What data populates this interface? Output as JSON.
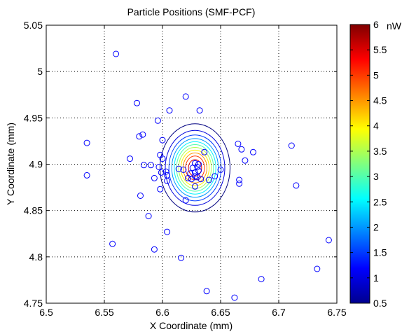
{
  "chart_data": {
    "type": "scatter",
    "title": "Particle Positions (SMF-PCF)",
    "xlabel": "X Coordinate (mm)",
    "ylabel": "Y Coordinate (mm)",
    "xlim": [
      6.5,
      6.75
    ],
    "ylim": [
      4.75,
      5.05
    ],
    "xticks": [
      "6.5",
      "6.55",
      "6.6",
      "6.65",
      "6.7",
      "6.75"
    ],
    "yticks": [
      "4.75",
      "4.8",
      "4.85",
      "4.9",
      "4.95",
      "5",
      "5.05"
    ],
    "grid": true,
    "colorbar": {
      "unit": "nW",
      "range": [
        0.5,
        6
      ],
      "ticks": [
        "0.5",
        "1",
        "1.5",
        "2",
        "2.5",
        "3",
        "3.5",
        "4",
        "4.5",
        "5",
        "5.5",
        "6"
      ]
    },
    "contour": {
      "center": [
        6.628,
        4.896
      ],
      "levels": [
        0.5,
        1,
        1.5,
        2,
        2.5,
        3,
        3.5,
        4,
        4.5,
        5,
        5.5,
        6
      ]
    },
    "points": [
      [
        6.56,
        5.019
      ],
      [
        6.62,
        4.973
      ],
      [
        6.578,
        4.966
      ],
      [
        6.606,
        4.958
      ],
      [
        6.632,
        4.958
      ],
      [
        6.596,
        4.947
      ],
      [
        6.535,
        4.923
      ],
      [
        6.58,
        4.93
      ],
      [
        6.583,
        4.932
      ],
      [
        6.6,
        4.926
      ],
      [
        6.665,
        4.922
      ],
      [
        6.711,
        4.92
      ],
      [
        6.668,
        4.916
      ],
      [
        6.678,
        4.913
      ],
      [
        6.636,
        4.913
      ],
      [
        6.598,
        4.91
      ],
      [
        6.6,
        4.906
      ],
      [
        6.572,
        4.906
      ],
      [
        6.671,
        4.904
      ],
      [
        6.584,
        4.899
      ],
      [
        6.59,
        4.899
      ],
      [
        6.597,
        4.897
      ],
      [
        6.614,
        4.895
      ],
      [
        6.618,
        4.894
      ],
      [
        6.65,
        4.894
      ],
      [
        6.603,
        4.892
      ],
      [
        6.599,
        4.891
      ],
      [
        6.604,
        4.888
      ],
      [
        6.535,
        4.888
      ],
      [
        6.593,
        4.885
      ],
      [
        6.645,
        4.887
      ],
      [
        6.666,
        4.883
      ],
      [
        6.666,
        4.879
      ],
      [
        6.604,
        4.882
      ],
      [
        6.622,
        4.885
      ],
      [
        6.625,
        4.884
      ],
      [
        6.628,
        4.887
      ],
      [
        6.63,
        4.886
      ],
      [
        6.633,
        4.884
      ],
      [
        6.628,
        4.891
      ],
      [
        6.624,
        4.89
      ],
      [
        6.631,
        4.893
      ],
      [
        6.626,
        4.896
      ],
      [
        6.63,
        4.897
      ],
      [
        6.628,
        4.901
      ],
      [
        6.631,
        4.9
      ],
      [
        6.64,
        4.883
      ],
      [
        6.628,
        4.876
      ],
      [
        6.598,
        4.873
      ],
      [
        6.715,
        4.877
      ],
      [
        6.581,
        4.866
      ],
      [
        6.62,
        4.861
      ],
      [
        6.588,
        4.844
      ],
      [
        6.604,
        4.827
      ],
      [
        6.557,
        4.814
      ],
      [
        6.593,
        4.808
      ],
      [
        6.743,
        4.818
      ],
      [
        6.616,
        4.799
      ],
      [
        6.733,
        4.787
      ],
      [
        6.685,
        4.776
      ],
      [
        6.638,
        4.763
      ],
      [
        6.662,
        4.756
      ]
    ]
  }
}
